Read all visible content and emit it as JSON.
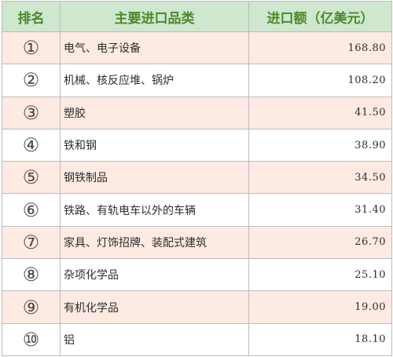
{
  "table": {
    "headers": [
      "排名",
      "主要进口品类",
      "进口额（亿美元）"
    ],
    "rows": [
      {
        "rank": "①",
        "category": "电气、电子设备",
        "value": "168.80"
      },
      {
        "rank": "②",
        "category": "机械、核反应堆、锅炉",
        "value": "108.20"
      },
      {
        "rank": "③",
        "category": "塑胶",
        "value": "41.50"
      },
      {
        "rank": "④",
        "category": "铁和钢",
        "value": "38.90"
      },
      {
        "rank": "⑤",
        "category": "钢铁制品",
        "value": "34.50"
      },
      {
        "rank": "⑥",
        "category": "铁路、有轨电车以外的车辆",
        "value": "31.40"
      },
      {
        "rank": "⑦",
        "category": "家具、灯饰招牌、装配式建筑",
        "value": "26.70"
      },
      {
        "rank": "⑧",
        "category": "杂项化学品",
        "value": "25.10"
      },
      {
        "rank": "⑨",
        "category": "有机化学品",
        "value": "19.00"
      },
      {
        "rank": "⑩",
        "category": "铝",
        "value": "18.10"
      }
    ]
  },
  "colors": {
    "header_bg": "#cfe6cf",
    "header_text": "#4a8a2a",
    "odd_row_bg": "#fdebe3",
    "even_row_bg": "#ffffff",
    "border": "#bcbcbc"
  }
}
